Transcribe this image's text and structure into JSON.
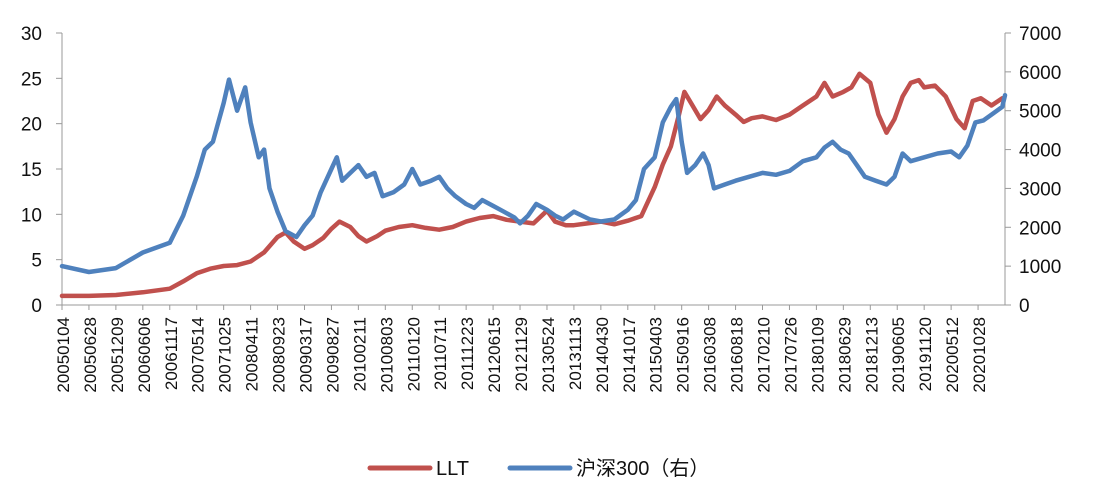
{
  "chart_data": {
    "type": "line",
    "title": "",
    "xlabel": "",
    "ylabel": "",
    "y_left": {
      "min": 0,
      "max": 30,
      "ticks": [
        "0",
        "5",
        "10",
        "15",
        "20",
        "25",
        "30"
      ]
    },
    "y_right": {
      "min": 0,
      "max": 7000,
      "ticks": [
        "0",
        "1000",
        "2000",
        "3000",
        "4000",
        "5000",
        "6000",
        "7000"
      ]
    },
    "x_tick_labels": [
      "20050104",
      "20050628",
      "20051209",
      "20060606",
      "20061117",
      "20070514",
      "20071025",
      "20080411",
      "20080923",
      "20090317",
      "20090827",
      "20100211",
      "20100803",
      "20110120",
      "20110711",
      "20111223",
      "20120615",
      "20121129",
      "20130524",
      "20131113",
      "20140430",
      "20141017",
      "20150403",
      "20150916",
      "20160308",
      "20160818",
      "20170210",
      "20170726",
      "20180109",
      "20180629",
      "20181213",
      "20190605",
      "20191120",
      "20200512",
      "20201028"
    ],
    "legend": {
      "position": "bottom-center"
    },
    "series": [
      {
        "name": "LLT",
        "axis": "left",
        "color": "#C0504D",
        "points": [
          [
            0,
            1.0
          ],
          [
            1,
            1.0
          ],
          [
            2,
            1.1
          ],
          [
            3,
            1.4
          ],
          [
            4,
            1.8
          ],
          [
            4.5,
            2.6
          ],
          [
            5,
            3.5
          ],
          [
            5.5,
            4.0
          ],
          [
            6,
            4.3
          ],
          [
            6.5,
            4.4
          ],
          [
            7,
            4.8
          ],
          [
            7.5,
            5.8
          ],
          [
            8,
            7.5
          ],
          [
            8.3,
            8.0
          ],
          [
            8.6,
            7.0
          ],
          [
            9,
            6.2
          ],
          [
            9.3,
            6.6
          ],
          [
            9.7,
            7.4
          ],
          [
            10,
            8.4
          ],
          [
            10.3,
            9.2
          ],
          [
            10.7,
            8.6
          ],
          [
            11,
            7.6
          ],
          [
            11.3,
            7.0
          ],
          [
            11.7,
            7.6
          ],
          [
            12,
            8.2
          ],
          [
            12.5,
            8.6
          ],
          [
            13,
            8.8
          ],
          [
            13.5,
            8.5
          ],
          [
            14,
            8.3
          ],
          [
            14.5,
            8.6
          ],
          [
            15,
            9.2
          ],
          [
            15.5,
            9.6
          ],
          [
            16,
            9.8
          ],
          [
            16.5,
            9.4
          ],
          [
            17,
            9.2
          ],
          [
            17.5,
            9.0
          ],
          [
            18,
            10.4
          ],
          [
            18.3,
            9.2
          ],
          [
            18.7,
            8.8
          ],
          [
            19,
            8.8
          ],
          [
            19.5,
            9.0
          ],
          [
            20,
            9.2
          ],
          [
            20.5,
            8.9
          ],
          [
            21,
            9.3
          ],
          [
            21.5,
            9.8
          ],
          [
            22,
            13.0
          ],
          [
            22.3,
            15.5
          ],
          [
            22.6,
            17.5
          ],
          [
            22.9,
            21.0
          ],
          [
            23.1,
            23.5
          ],
          [
            23.4,
            22.0
          ],
          [
            23.7,
            20.5
          ],
          [
            24,
            21.5
          ],
          [
            24.3,
            23.0
          ],
          [
            24.6,
            22.0
          ],
          [
            25,
            21.0
          ],
          [
            25.3,
            20.2
          ],
          [
            25.6,
            20.6
          ],
          [
            26,
            20.8
          ],
          [
            26.5,
            20.4
          ],
          [
            27,
            21.0
          ],
          [
            27.5,
            22.0
          ],
          [
            28,
            23.0
          ],
          [
            28.3,
            24.5
          ],
          [
            28.6,
            23.0
          ],
          [
            29,
            23.5
          ],
          [
            29.3,
            24.0
          ],
          [
            29.6,
            25.5
          ],
          [
            30,
            24.5
          ],
          [
            30.3,
            21.0
          ],
          [
            30.6,
            19.0
          ],
          [
            30.9,
            20.5
          ],
          [
            31.2,
            23.0
          ],
          [
            31.5,
            24.5
          ],
          [
            31.8,
            24.8
          ],
          [
            32,
            24.0
          ],
          [
            32.4,
            24.2
          ],
          [
            32.8,
            23.0
          ],
          [
            33.2,
            20.5
          ],
          [
            33.5,
            19.5
          ],
          [
            33.8,
            22.5
          ],
          [
            34.1,
            22.8
          ],
          [
            34.5,
            22.0
          ],
          [
            34.9,
            22.8
          ]
        ]
      },
      {
        "name": "沪深300（右）",
        "axis": "right",
        "color": "#4F81BD",
        "points": [
          [
            0,
            1000
          ],
          [
            1,
            850
          ],
          [
            2,
            950
          ],
          [
            3,
            1350
          ],
          [
            4,
            1600
          ],
          [
            4.5,
            2300
          ],
          [
            5,
            3300
          ],
          [
            5.3,
            4000
          ],
          [
            5.6,
            4200
          ],
          [
            6,
            5200
          ],
          [
            6.2,
            5800
          ],
          [
            6.5,
            5000
          ],
          [
            6.8,
            5600
          ],
          [
            7,
            4700
          ],
          [
            7.3,
            3800
          ],
          [
            7.5,
            4000
          ],
          [
            7.7,
            3000
          ],
          [
            8,
            2400
          ],
          [
            8.3,
            1900
          ],
          [
            8.7,
            1750
          ],
          [
            9,
            2050
          ],
          [
            9.3,
            2300
          ],
          [
            9.6,
            2900
          ],
          [
            10,
            3500
          ],
          [
            10.2,
            3800
          ],
          [
            10.4,
            3200
          ],
          [
            10.7,
            3400
          ],
          [
            11,
            3600
          ],
          [
            11.3,
            3300
          ],
          [
            11.6,
            3400
          ],
          [
            11.9,
            2800
          ],
          [
            12.3,
            2900
          ],
          [
            12.7,
            3100
          ],
          [
            13,
            3500
          ],
          [
            13.3,
            3100
          ],
          [
            13.7,
            3200
          ],
          [
            14,
            3300
          ],
          [
            14.3,
            3000
          ],
          [
            14.6,
            2800
          ],
          [
            15,
            2600
          ],
          [
            15.3,
            2500
          ],
          [
            15.6,
            2700
          ],
          [
            16,
            2550
          ],
          [
            16.4,
            2400
          ],
          [
            16.8,
            2250
          ],
          [
            17,
            2100
          ],
          [
            17.3,
            2300
          ],
          [
            17.6,
            2600
          ],
          [
            18,
            2450
          ],
          [
            18.3,
            2300
          ],
          [
            18.6,
            2200
          ],
          [
            19,
            2400
          ],
          [
            19.3,
            2300
          ],
          [
            19.6,
            2200
          ],
          [
            20,
            2150
          ],
          [
            20.5,
            2200
          ],
          [
            21,
            2450
          ],
          [
            21.3,
            2700
          ],
          [
            21.6,
            3500
          ],
          [
            22,
            3800
          ],
          [
            22.3,
            4700
          ],
          [
            22.6,
            5100
          ],
          [
            22.8,
            5300
          ],
          [
            23,
            4200
          ],
          [
            23.2,
            3400
          ],
          [
            23.5,
            3600
          ],
          [
            23.8,
            3900
          ],
          [
            24,
            3600
          ],
          [
            24.2,
            3000
          ],
          [
            24.6,
            3100
          ],
          [
            25,
            3200
          ],
          [
            25.5,
            3300
          ],
          [
            26,
            3400
          ],
          [
            26.5,
            3350
          ],
          [
            27,
            3450
          ],
          [
            27.5,
            3700
          ],
          [
            28,
            3800
          ],
          [
            28.3,
            4050
          ],
          [
            28.6,
            4200
          ],
          [
            28.9,
            4000
          ],
          [
            29.2,
            3900
          ],
          [
            29.5,
            3600
          ],
          [
            29.8,
            3300
          ],
          [
            30.2,
            3200
          ],
          [
            30.6,
            3100
          ],
          [
            30.9,
            3300
          ],
          [
            31.2,
            3900
          ],
          [
            31.5,
            3700
          ],
          [
            32,
            3800
          ],
          [
            32.5,
            3900
          ],
          [
            33,
            3950
          ],
          [
            33.3,
            3800
          ],
          [
            33.6,
            4100
          ],
          [
            33.9,
            4700
          ],
          [
            34.2,
            4750
          ],
          [
            34.6,
            4950
          ],
          [
            34.9,
            5100
          ],
          [
            35,
            5400
          ]
        ]
      }
    ]
  }
}
